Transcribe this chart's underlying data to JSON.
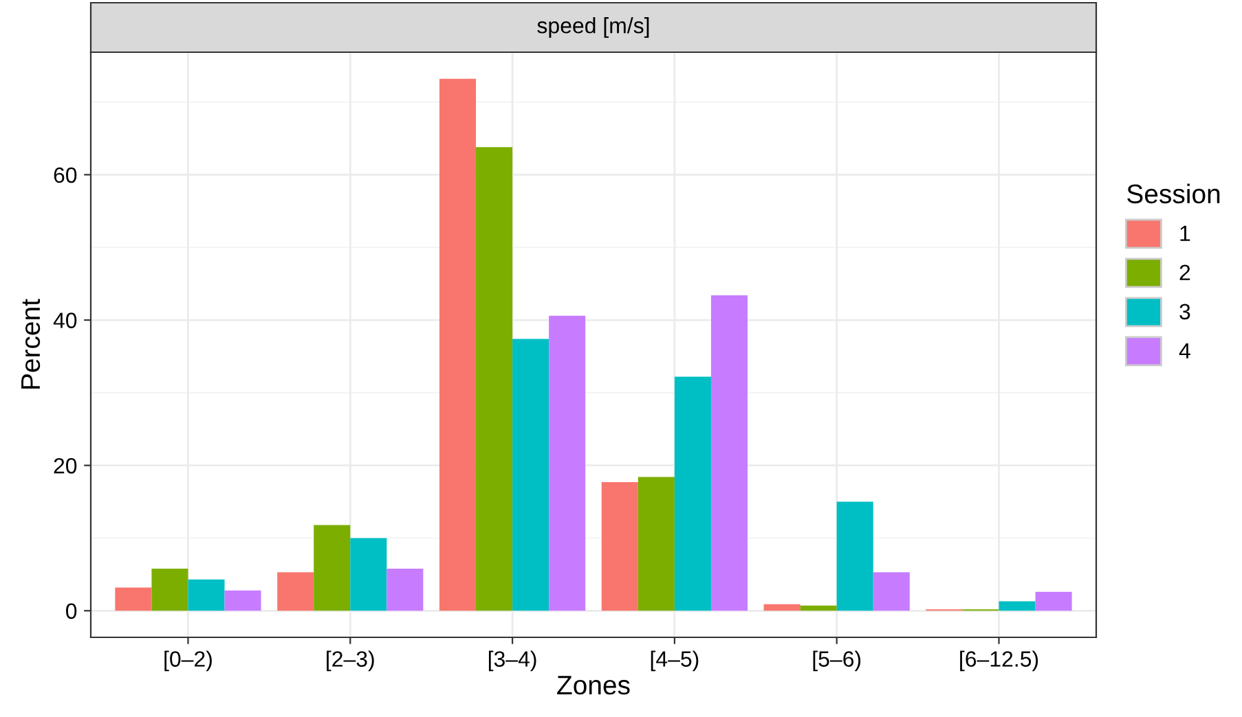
{
  "chart_data": {
    "type": "bar",
    "title": "speed [m/s]",
    "xlabel": "Zones",
    "ylabel": "Percent",
    "legend_title": "Session",
    "categories": [
      "[0–2)",
      "[2–3)",
      "[3–4)",
      "[4–5)",
      "[5–6)",
      "[6–12.5)"
    ],
    "series": [
      {
        "name": "1",
        "color": "#f8766d",
        "values": [
          3.2,
          5.3,
          73.2,
          17.7,
          0.9,
          0.2
        ]
      },
      {
        "name": "2",
        "color": "#7cae00",
        "values": [
          5.8,
          11.8,
          63.8,
          18.4,
          0.7,
          0.2
        ]
      },
      {
        "name": "3",
        "color": "#00bfc4",
        "values": [
          4.3,
          10.0,
          37.4,
          32.2,
          15.0,
          1.3
        ]
      },
      {
        "name": "4",
        "color": "#c77cff",
        "values": [
          2.8,
          5.8,
          40.6,
          43.4,
          5.3,
          2.6
        ]
      }
    ],
    "ylim": [
      -3.66,
      76.86
    ],
    "yticks": [
      0,
      20,
      40,
      60
    ],
    "grid": true,
    "legend": "right"
  }
}
